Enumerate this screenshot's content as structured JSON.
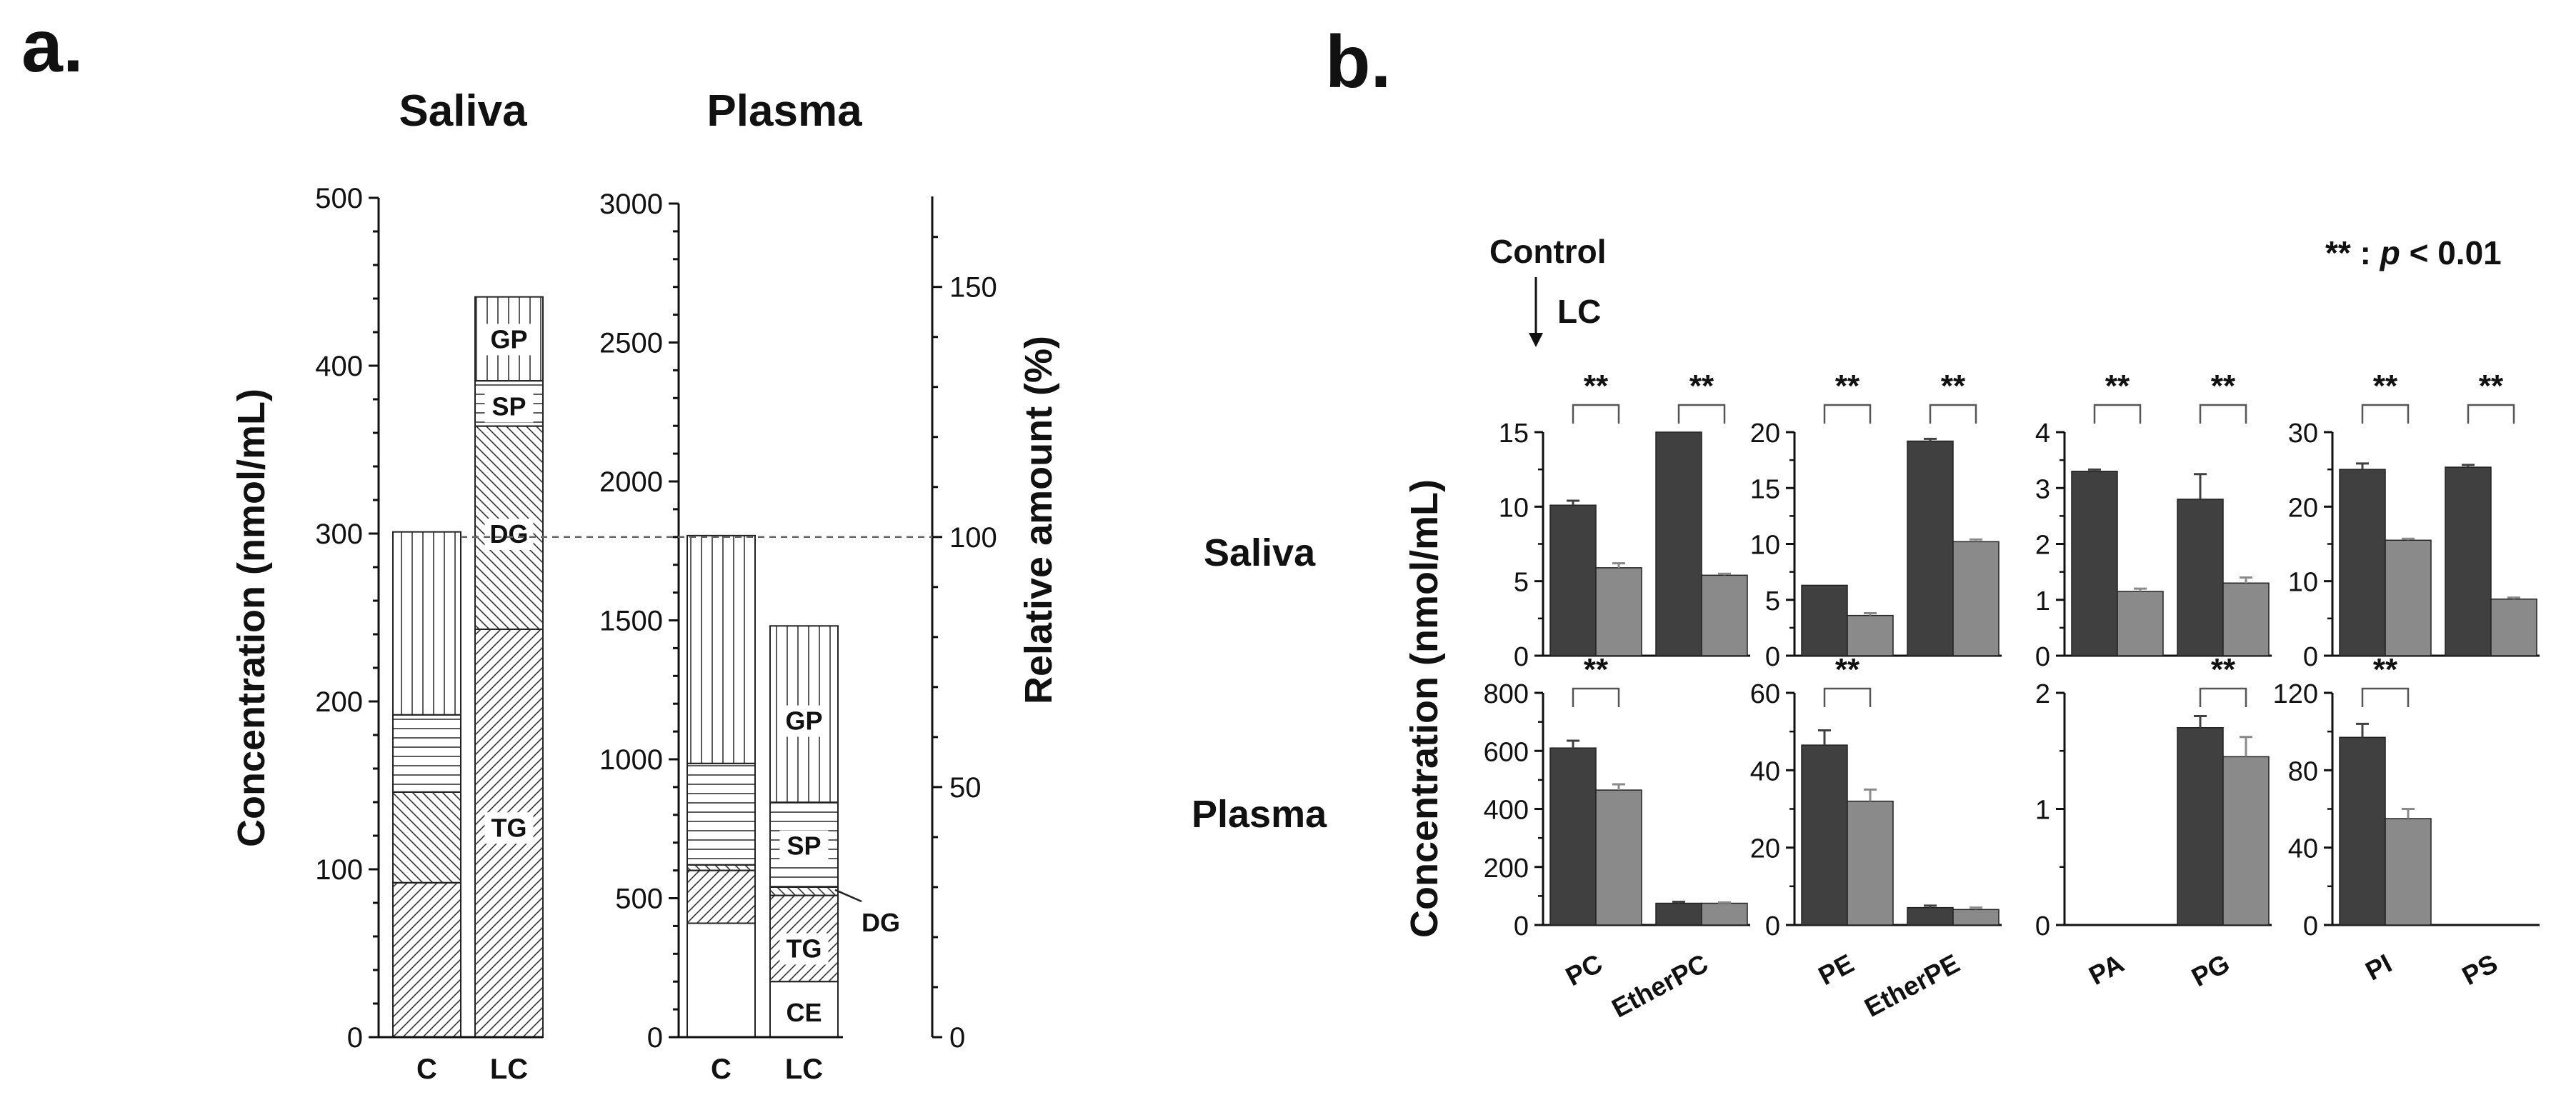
{
  "colors": {
    "control": "#404040",
    "lc": "#8a8a8a",
    "axis": "#111111",
    "ref_line": "#666666"
  },
  "figure": {
    "panel_a_letter": "a.",
    "panel_b_letter": "b."
  },
  "chart_data": [
    {
      "id": "a-saliva",
      "type": "bar",
      "stacked": true,
      "title": "Saliva",
      "categories": [
        "C",
        "LC"
      ],
      "ylabel": "Concentration (nmol/mL)",
      "ylim": [
        0,
        500
      ],
      "yticks": [
        0,
        100,
        200,
        300,
        400,
        500
      ],
      "series": [
        {
          "name": "TG",
          "pattern": "diag-fwd",
          "values": [
            92,
            243
          ]
        },
        {
          "name": "DG",
          "pattern": "diag-back",
          "values": [
            54,
            121
          ]
        },
        {
          "name": "SP",
          "pattern": "horizontal",
          "values": [
            46,
            27
          ]
        },
        {
          "name": "GP",
          "pattern": "vertical",
          "values": [
            109,
            50
          ]
        }
      ],
      "segment_labels": [
        {
          "text": "TG",
          "category": "LC",
          "value": 125
        },
        {
          "text": "DG",
          "category": "LC",
          "value": 300
        },
        {
          "text": "SP",
          "category": "LC",
          "value": 376
        },
        {
          "text": "GP",
          "category": "LC",
          "value": 416
        }
      ]
    },
    {
      "id": "a-plasma",
      "type": "bar",
      "stacked": true,
      "title": "Plasma",
      "categories": [
        "C",
        "LC"
      ],
      "ylim": [
        0,
        3000
      ],
      "yticks": [
        0,
        500,
        1000,
        1500,
        2000,
        2500,
        3000
      ],
      "y2label": "Relative amount (%)",
      "y2ticks": [
        0,
        50,
        100,
        150
      ],
      "reference_line": {
        "value": 1800,
        "label": "100"
      },
      "series": [
        {
          "name": "CE",
          "pattern": "none",
          "values": [
            410,
            200
          ]
        },
        {
          "name": "TG",
          "pattern": "diag-fwd",
          "values": [
            190,
            310
          ]
        },
        {
          "name": "DG",
          "pattern": "diag-back",
          "values": [
            20,
            30
          ]
        },
        {
          "name": "SP",
          "pattern": "horizontal",
          "values": [
            365,
            305
          ]
        },
        {
          "name": "GP",
          "pattern": "vertical",
          "values": [
            820,
            635
          ]
        }
      ],
      "segment_labels": [
        {
          "text": "CE",
          "category": "LC",
          "value": 90
        },
        {
          "text": "TG",
          "category": "LC",
          "value": 320
        },
        {
          "text": "SP",
          "category": "LC",
          "value": 690
        },
        {
          "text": "GP",
          "category": "LC",
          "value": 1140
        }
      ],
      "callout": {
        "text": "DG",
        "category": "LC",
        "value": 530
      }
    },
    {
      "id": "b-saliva-pc",
      "type": "bar",
      "row": "Saliva",
      "categories": [
        "PC",
        "EtherPC"
      ],
      "ylim": [
        0,
        15
      ],
      "yticks": [
        0,
        5,
        10,
        15
      ],
      "series": [
        {
          "name": "Control",
          "values": [
            10.1,
            15.0
          ],
          "errors": [
            0.3,
            0
          ]
        },
        {
          "name": "LC",
          "values": [
            5.9,
            5.4
          ],
          "errors": [
            0.3,
            0.1
          ]
        }
      ],
      "significance": [
        "**",
        "**"
      ]
    },
    {
      "id": "b-saliva-pe",
      "type": "bar",
      "row": "Saliva",
      "categories": [
        "PE",
        "EtherPE"
      ],
      "ylim": [
        0,
        20
      ],
      "yticks": [
        0,
        5,
        10,
        15,
        20
      ],
      "series": [
        {
          "name": "Control",
          "values": [
            6.3,
            19.2
          ],
          "errors": [
            0,
            0.2
          ]
        },
        {
          "name": "LC",
          "values": [
            3.6,
            10.2
          ],
          "errors": [
            0.2,
            0.2
          ]
        }
      ],
      "significance": [
        "**",
        "**"
      ]
    },
    {
      "id": "b-saliva-pa",
      "type": "bar",
      "row": "Saliva",
      "categories": [
        "PA",
        "PG"
      ],
      "ylim": [
        0,
        4
      ],
      "yticks": [
        0,
        1,
        2,
        3,
        4
      ],
      "series": [
        {
          "name": "Control",
          "values": [
            3.3,
            2.8
          ],
          "errors": [
            0.03,
            0.45
          ]
        },
        {
          "name": "LC",
          "values": [
            1.15,
            1.3
          ],
          "errors": [
            0.05,
            0.1
          ]
        }
      ],
      "significance": [
        "**",
        "**"
      ]
    },
    {
      "id": "b-saliva-pi",
      "type": "bar",
      "row": "Saliva",
      "categories": [
        "PI",
        "PS"
      ],
      "ylim": [
        0,
        30
      ],
      "yticks": [
        0,
        10,
        20,
        30
      ],
      "series": [
        {
          "name": "Control",
          "values": [
            25.0,
            25.3
          ],
          "errors": [
            0.8,
            0.3
          ]
        },
        {
          "name": "LC",
          "values": [
            15.5,
            7.6
          ],
          "errors": [
            0.2,
            0.2
          ]
        }
      ],
      "significance": [
        "**",
        "**"
      ]
    },
    {
      "id": "b-plasma-pc",
      "type": "bar",
      "row": "Plasma",
      "categories": [
        "PC",
        "EtherPC"
      ],
      "ylabel": "Concentration (nmol/mL)",
      "ylim": [
        0,
        800
      ],
      "yticks": [
        0,
        200,
        400,
        600,
        800
      ],
      "series": [
        {
          "name": "Control",
          "values": [
            610,
            75
          ],
          "errors": [
            25,
            5
          ]
        },
        {
          "name": "LC",
          "values": [
            465,
            75
          ],
          "errors": [
            20,
            3
          ]
        }
      ],
      "significance": [
        "**",
        ""
      ]
    },
    {
      "id": "b-plasma-pe",
      "type": "bar",
      "row": "Plasma",
      "categories": [
        "PE",
        "EtherPE"
      ],
      "ylim": [
        0,
        60
      ],
      "yticks": [
        0,
        20,
        40,
        60
      ],
      "series": [
        {
          "name": "Control",
          "values": [
            46.5,
            4.5
          ],
          "errors": [
            3.8,
            0.5
          ]
        },
        {
          "name": "LC",
          "values": [
            32.0,
            4.0
          ],
          "errors": [
            3.0,
            0.5
          ]
        }
      ],
      "significance": [
        "**",
        ""
      ]
    },
    {
      "id": "b-plasma-pa",
      "type": "bar",
      "row": "Plasma",
      "categories": [
        "PA",
        "PG"
      ],
      "ylim": [
        0,
        2
      ],
      "yticks": [
        0,
        1,
        2
      ],
      "series": [
        {
          "name": "Control",
          "values": [
            0,
            1.7
          ],
          "errors": [
            0,
            0.1
          ]
        },
        {
          "name": "LC",
          "values": [
            0,
            1.45
          ],
          "errors": [
            0,
            0.17
          ]
        }
      ],
      "significance": [
        "",
        "**"
      ]
    },
    {
      "id": "b-plasma-pi",
      "type": "bar",
      "row": "Plasma",
      "categories": [
        "PI",
        "PS"
      ],
      "ylim": [
        0,
        120
      ],
      "yticks": [
        0,
        40,
        80,
        120
      ],
      "series": [
        {
          "name": "Control",
          "values": [
            97,
            0
          ],
          "errors": [
            7,
            0
          ]
        },
        {
          "name": "LC",
          "values": [
            55,
            0
          ],
          "errors": [
            5,
            0
          ]
        }
      ],
      "significance": [
        "**",
        ""
      ]
    }
  ],
  "panel_b": {
    "row_labels": [
      "Saliva",
      "Plasma"
    ],
    "ylabel": "Concentration (nmol/mL)",
    "legend_control": "Control",
    "legend_lc": "LC",
    "pvalue_prefix": "** : ",
    "pvalue_p": "p",
    "pvalue_suffix": " < 0.01"
  }
}
